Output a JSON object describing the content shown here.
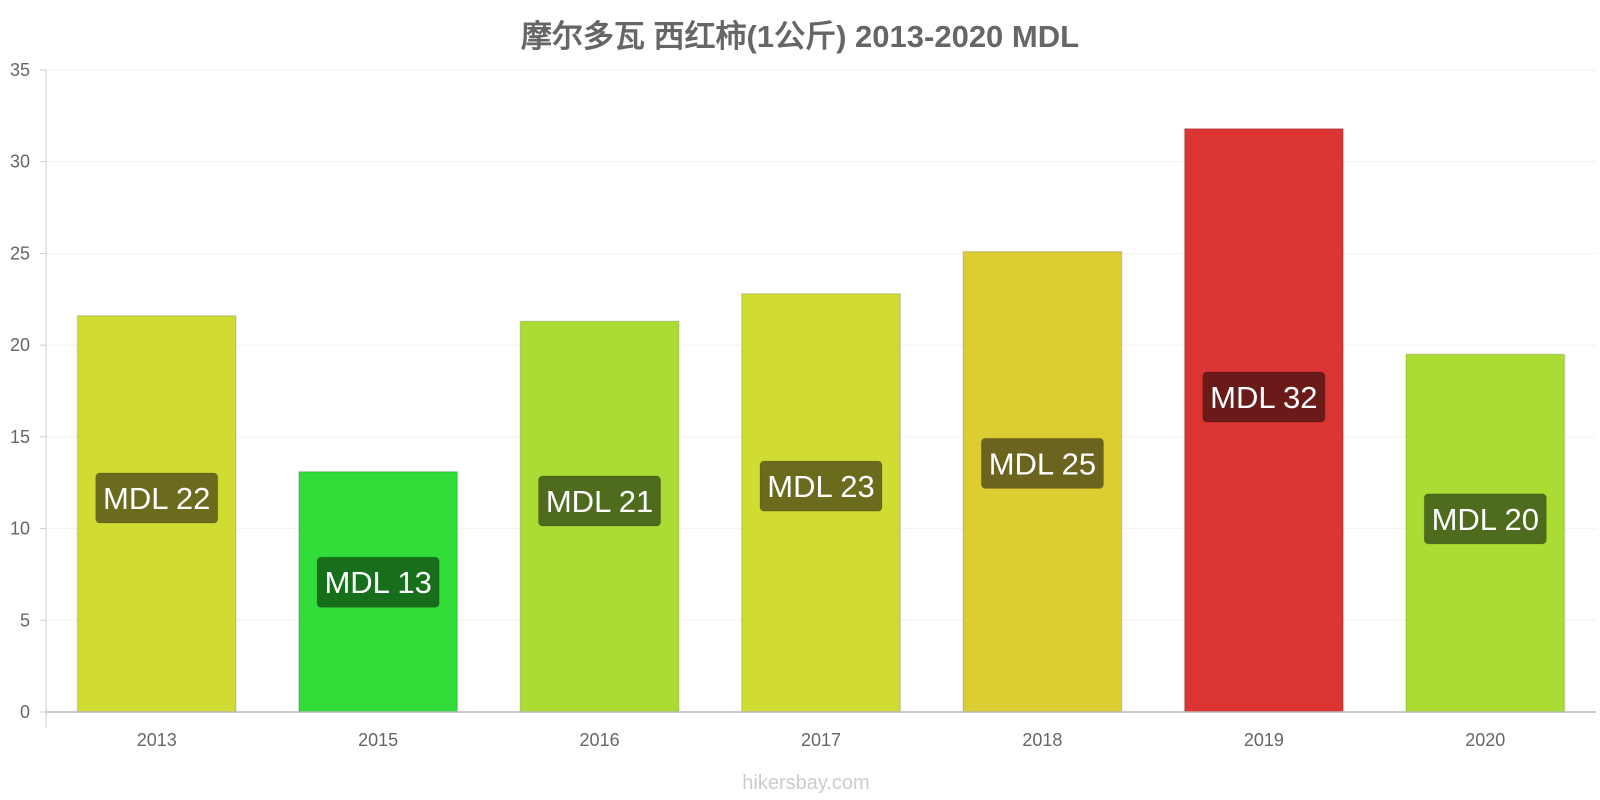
{
  "chart_data": {
    "type": "bar",
    "title": "摩尔多瓦 西红柿(1公斤) 2013-2020 MDL",
    "categories": [
      "2013",
      "2015",
      "2016",
      "2017",
      "2018",
      "2019",
      "2020"
    ],
    "values": [
      21.6,
      13.1,
      21.3,
      22.8,
      25.1,
      31.8,
      19.5
    ],
    "value_labels": [
      "MDL 22",
      "MDL 13",
      "MDL 21",
      "MDL 23",
      "MDL 25",
      "MDL 32",
      "MDL 20"
    ],
    "bar_colors": [
      "#d1dc33",
      "#33dd39",
      "#abdc33",
      "#d1dc33",
      "#dccd33",
      "#dc3333",
      "#abdc33"
    ],
    "label_bg_colors": [
      "#6b6b1e",
      "#176e1b",
      "#4e6b1e",
      "#6b6b1e",
      "#6b641e",
      "#6b1a1a",
      "#4e6b1e"
    ],
    "yticks": [
      0,
      5,
      10,
      15,
      20,
      25,
      30,
      35
    ],
    "ylim": [
      0,
      35
    ],
    "grid": true,
    "watermark": "hikersbay.com"
  }
}
